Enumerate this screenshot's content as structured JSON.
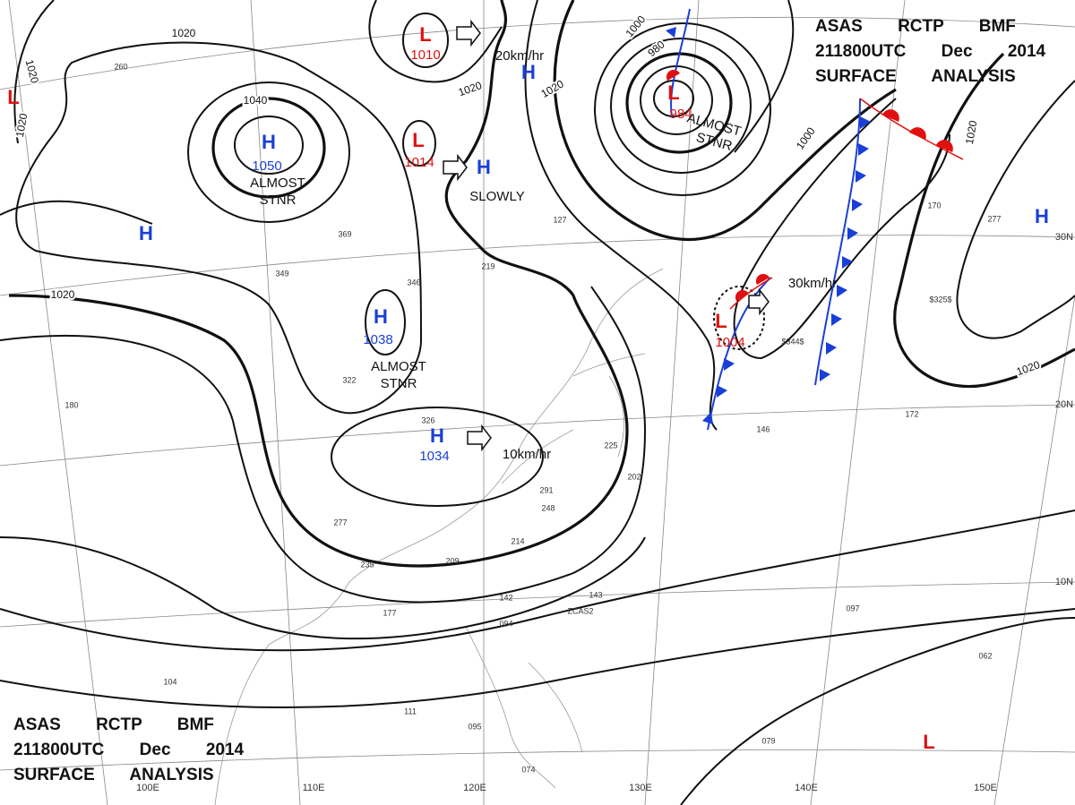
{
  "header": {
    "lines": [
      "ASAS RCTP BMF",
      "211800UTC Dec 2014",
      "SURFACE ANALYSIS"
    ]
  },
  "systems": [
    {
      "type": "H",
      "value": "1050",
      "note": [
        "ALMOST",
        "STNR"
      ]
    },
    {
      "type": "H",
      "value": "1038",
      "note": [
        "ALMOST",
        "STNR"
      ]
    },
    {
      "type": "H",
      "value": "1034"
    },
    {
      "type": "H"
    },
    {
      "type": "H"
    },
    {
      "type": "H"
    },
    {
      "type": "H"
    },
    {
      "type": "L",
      "value": "1010"
    },
    {
      "type": "L",
      "value": "1014"
    },
    {
      "type": "L",
      "value": "984",
      "note": [
        "ALMOST",
        "STNR"
      ]
    },
    {
      "type": "L",
      "value": "1004"
    },
    {
      "type": "L"
    },
    {
      "type": "L"
    }
  ],
  "motions": [
    "20km/hr",
    "SLOWLY",
    "10km/hr",
    "30km/hr"
  ],
  "isobar_labels": [
    "1020",
    "1020",
    "1020",
    "1040",
    "1020",
    "1020",
    "1020",
    "1000",
    "980",
    "1000",
    "1020",
    "1020"
  ],
  "latitudes": [
    "30N",
    "20N",
    "10N"
  ],
  "longitudes": [
    "100E",
    "110E",
    "120E",
    "130E",
    "140E",
    "150E"
  ],
  "stations": [
    "260",
    "369",
    "349",
    "219",
    "127",
    "346",
    "322",
    "180",
    "326",
    "277",
    "235",
    "177",
    "104",
    "111",
    "095",
    "074",
    "142",
    "094",
    "143",
    "ZCAS2",
    "097",
    "062",
    "079",
    "146",
    "172",
    "170",
    "277",
    "$344$",
    "$325$",
    "225",
    "202",
    "291",
    "248",
    "214",
    "209"
  ]
}
